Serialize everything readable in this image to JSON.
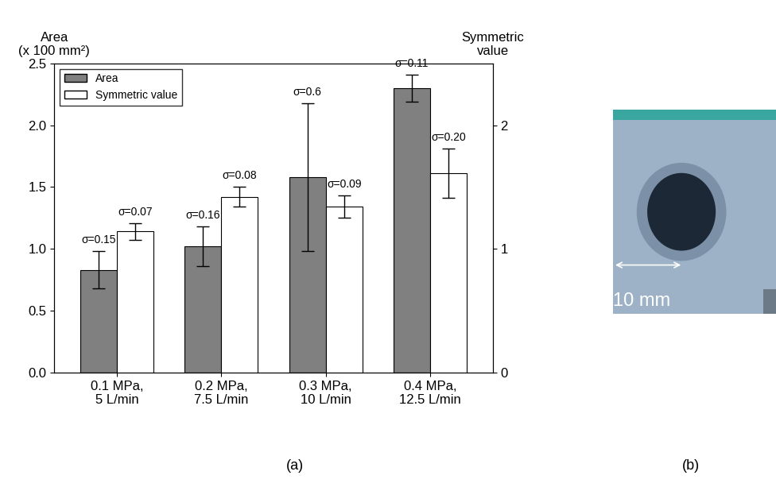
{
  "chart_data": {
    "type": "bar",
    "caption": "(a)",
    "ylabel": "Area\n(x 100 mm²)",
    "y2label": "Symmetric\nvalue",
    "categories": [
      "0.1 MPa,\n5 L/min",
      "0.2 MPa,\n7.5 L/min",
      "0.3 MPa,\n10 L/min",
      "0.4 MPa,\n12.5 L/min"
    ],
    "series": [
      {
        "name": "Area",
        "color": "#808080",
        "values": [
          0.83,
          1.02,
          1.58,
          2.3
        ],
        "errors": [
          0.15,
          0.16,
          0.6,
          0.11
        ],
        "error_labels": [
          "σ=0.15",
          "σ=0.16",
          "σ=0.6",
          "σ=0.11"
        ]
      },
      {
        "name": "Symmetric value",
        "color": "#ffffff",
        "axis": "y2",
        "values": [
          1.14,
          1.42,
          1.34,
          1.61
        ],
        "errors": [
          0.07,
          0.08,
          0.09,
          0.2
        ],
        "error_labels": [
          "σ=0.07",
          "σ=0.08",
          "σ=0.09",
          "σ=0.20"
        ]
      }
    ],
    "ylim": [
      0,
      2.5
    ],
    "yticks": [
      {
        "value": 0,
        "label": "0.0"
      },
      0.5,
      {
        "value": 1,
        "label": "1.0"
      },
      1.5,
      {
        "value": 2,
        "label": "2.0"
      },
      2.5
    ],
    "y2lim": [
      0,
      2.5
    ],
    "y2ticks": [
      0,
      1,
      2
    ],
    "legend": "upper left",
    "grid": false
  },
  "image": {
    "caption": "(b)",
    "scale_text": "10 mm"
  }
}
